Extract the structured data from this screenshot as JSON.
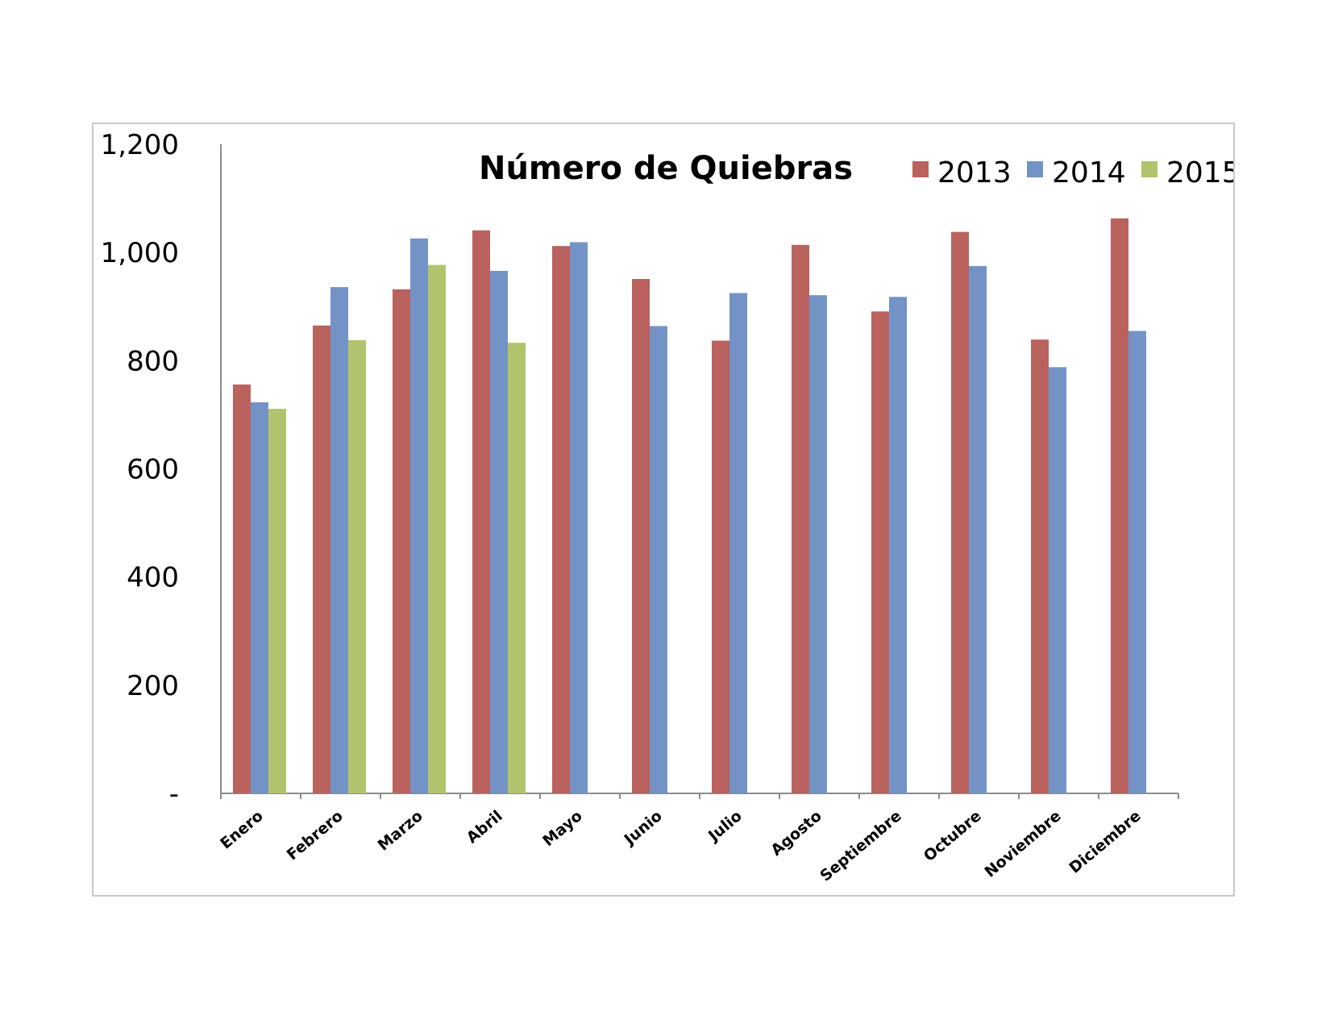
{
  "chart_data": {
    "type": "bar",
    "title": "Número de Quiebras",
    "xlabel": "",
    "ylabel": "",
    "ylim": [
      0,
      1200
    ],
    "yticks": [
      0,
      200,
      400,
      600,
      800,
      1000,
      1200
    ],
    "ytick_labels": [
      "-",
      "200",
      "400",
      "600",
      "800",
      "1,000",
      "1,200"
    ],
    "grid": false,
    "legend_position": "top-right",
    "categories": [
      "Enero",
      "Febrero",
      "Marzo",
      "Abril",
      "Mayo",
      "Junio",
      "Julio",
      "Agosto",
      "Septiembre",
      "Octubre",
      "Noviembre",
      "Diciembre"
    ],
    "series": [
      {
        "name": "2013",
        "color": "#b9625e",
        "values": [
          756,
          865,
          932,
          1041,
          1012,
          951,
          837,
          1014,
          891,
          1038,
          839,
          1063
        ]
      },
      {
        "name": "2014",
        "color": "#7393c6",
        "values": [
          723,
          936,
          1026,
          966,
          1019,
          864,
          925,
          921,
          918,
          975,
          788,
          855
        ]
      },
      {
        "name": "2015",
        "color": "#b1c46d",
        "values": [
          711,
          838,
          977,
          833,
          null,
          null,
          null,
          null,
          null,
          null,
          null,
          null
        ]
      }
    ]
  }
}
